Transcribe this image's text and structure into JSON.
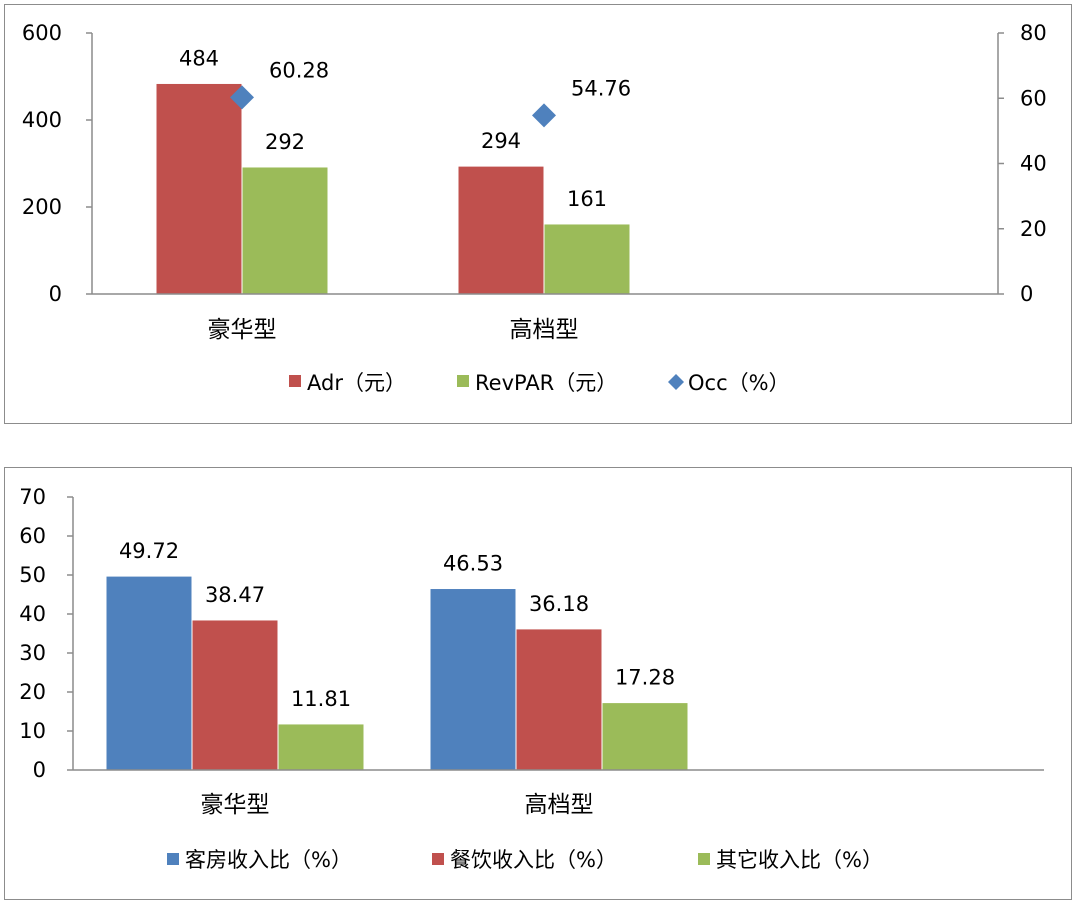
{
  "chart_data": [
    {
      "type": "bar",
      "categories": [
        "豪华型",
        "高档型"
      ],
      "series": [
        {
          "name": "Adr（元）",
          "values": [
            484,
            294
          ],
          "color": "#c0504d",
          "axis": "left",
          "kind": "bar"
        },
        {
          "name": "RevPAR（元）",
          "values": [
            292,
            161
          ],
          "color": "#9bbb59",
          "axis": "left",
          "kind": "bar"
        },
        {
          "name": "Occ（%）",
          "values": [
            60.28,
            54.76
          ],
          "color": "#4f81bd",
          "axis": "right",
          "kind": "marker"
        }
      ],
      "data_labels": {
        "Adr": [
          "484",
          "294"
        ],
        "RevPAR": [
          "292",
          "161"
        ],
        "Occ": [
          "60.28",
          "54.76"
        ]
      },
      "ylim": [
        0,
        600
      ],
      "yticks": [
        "0",
        "200",
        "400",
        "600"
      ],
      "y2lim": [
        0,
        80
      ],
      "y2ticks": [
        "0",
        "20",
        "40",
        "60",
        "80"
      ],
      "legend": "bottom",
      "grid": false
    },
    {
      "type": "bar",
      "categories": [
        "豪华型",
        "高档型"
      ],
      "series": [
        {
          "name": "客房收入比（%）",
          "values": [
            49.72,
            46.53
          ],
          "color": "#4f81bd"
        },
        {
          "name": "餐饮收入比（%）",
          "values": [
            38.47,
            36.18
          ],
          "color": "#c0504d"
        },
        {
          "name": "其它收入比（%）",
          "values": [
            11.81,
            17.28
          ],
          "color": "#9bbb59"
        }
      ],
      "data_labels": {
        "客房": [
          "49.72",
          "46.53"
        ],
        "餐饮": [
          "38.47",
          "36.18"
        ],
        "其它": [
          "11.81",
          "17.28"
        ]
      },
      "ylim": [
        0,
        70
      ],
      "yticks": [
        "0",
        "10",
        "20",
        "30",
        "40",
        "50",
        "60",
        "70"
      ],
      "legend": "bottom",
      "grid": false
    }
  ]
}
